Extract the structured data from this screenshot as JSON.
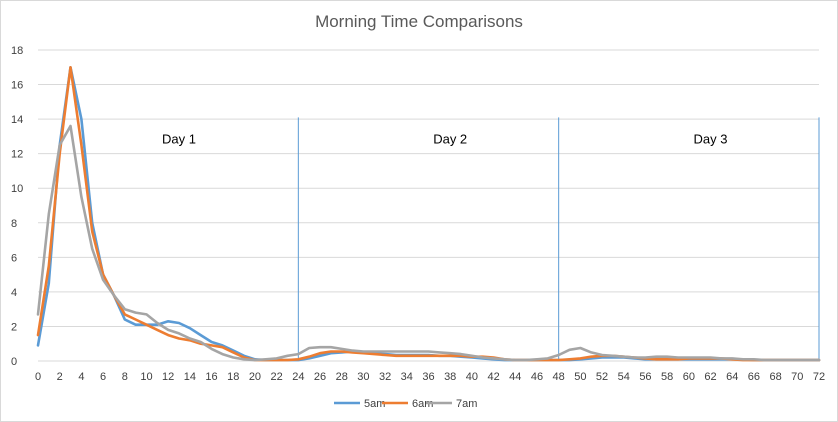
{
  "chart_data": {
    "type": "line",
    "title": "Morning Time Comparisons",
    "xlabel": "",
    "ylabel": "",
    "xlim": [
      0,
      72
    ],
    "ylim": [
      0,
      18
    ],
    "x_ticks": [
      "0",
      "2",
      "4",
      "6",
      "8",
      "10",
      "12",
      "14",
      "16",
      "18",
      "20",
      "22",
      "24",
      "26",
      "28",
      "30",
      "32",
      "34",
      "36",
      "38",
      "40",
      "42",
      "44",
      "46",
      "48",
      "50",
      "52",
      "54",
      "56",
      "58",
      "60",
      "62",
      "64",
      "66",
      "68",
      "70",
      "72"
    ],
    "y_ticks": [
      "0",
      "2",
      "4",
      "6",
      "8",
      "10",
      "12",
      "14",
      "16",
      "18"
    ],
    "grid": "horizontal",
    "legend_position": "bottom",
    "vertical_lines": [
      24,
      48,
      72
    ],
    "day_labels": [
      {
        "text": "Day 1",
        "x": 13
      },
      {
        "text": "Day 2",
        "x": 38
      },
      {
        "text": "Day 3",
        "x": 62
      }
    ],
    "colors": {
      "5am": "#5b9bd5",
      "6am": "#ed7d31",
      "7am": "#a5a5a5",
      "divider": "#5b9bd5",
      "grid": "#d9d9d9"
    },
    "series": [
      {
        "name": "5am",
        "color": "#5b9bd5",
        "x": [
          0,
          1,
          2,
          3,
          4,
          5,
          6,
          7,
          8,
          9,
          10,
          11,
          12,
          13,
          14,
          15,
          16,
          17,
          18,
          19,
          20,
          21,
          22,
          23,
          24,
          25,
          26,
          27,
          28,
          29,
          30,
          31,
          32,
          33,
          34,
          35,
          36,
          37,
          38,
          39,
          40,
          41,
          42,
          43,
          44,
          45,
          46,
          47,
          48,
          49,
          50,
          51,
          52,
          53,
          54,
          55,
          56,
          57,
          58,
          59,
          60,
          61,
          62,
          63,
          64,
          65,
          66,
          67,
          68,
          69,
          70,
          71,
          72
        ],
        "values": [
          0.9,
          4.5,
          12.5,
          17.0,
          14.0,
          8.0,
          5.0,
          3.8,
          2.4,
          2.1,
          2.1,
          2.1,
          2.3,
          2.2,
          1.9,
          1.5,
          1.1,
          0.9,
          0.6,
          0.3,
          0.1,
          0.05,
          0.05,
          0.05,
          0.05,
          0.15,
          0.3,
          0.45,
          0.5,
          0.55,
          0.5,
          0.45,
          0.4,
          0.35,
          0.35,
          0.35,
          0.35,
          0.3,
          0.3,
          0.25,
          0.2,
          0.15,
          0.1,
          0.05,
          0.05,
          0.05,
          0.05,
          0.05,
          0.05,
          0.05,
          0.1,
          0.15,
          0.2,
          0.2,
          0.2,
          0.15,
          0.1,
          0.1,
          0.1,
          0.1,
          0.1,
          0.1,
          0.1,
          0.1,
          0.1,
          0.1,
          0.05,
          0.05,
          0.05,
          0.05,
          0.05,
          0.05,
          0.05
        ]
      },
      {
        "name": "6am",
        "color": "#ed7d31",
        "x": [
          0,
          1,
          2,
          3,
          4,
          5,
          6,
          7,
          8,
          9,
          10,
          11,
          12,
          13,
          14,
          15,
          16,
          17,
          18,
          19,
          20,
          21,
          22,
          23,
          24,
          25,
          26,
          27,
          28,
          29,
          30,
          31,
          32,
          33,
          34,
          35,
          36,
          37,
          38,
          39,
          40,
          41,
          42,
          43,
          44,
          45,
          46,
          47,
          48,
          49,
          50,
          51,
          52,
          53,
          54,
          55,
          56,
          57,
          58,
          59,
          60,
          61,
          62,
          63,
          64,
          65,
          66,
          67,
          68,
          69,
          70,
          71,
          72
        ],
        "values": [
          1.5,
          5.5,
          12.0,
          17.0,
          12.5,
          7.5,
          5.0,
          3.8,
          2.7,
          2.4,
          2.1,
          1.8,
          1.5,
          1.3,
          1.2,
          1.0,
          0.9,
          0.8,
          0.5,
          0.2,
          0.05,
          0.05,
          0.05,
          0.05,
          0.1,
          0.25,
          0.45,
          0.55,
          0.55,
          0.5,
          0.45,
          0.4,
          0.35,
          0.3,
          0.3,
          0.3,
          0.3,
          0.3,
          0.3,
          0.3,
          0.25,
          0.25,
          0.2,
          0.1,
          0.05,
          0.05,
          0.05,
          0.05,
          0.05,
          0.1,
          0.15,
          0.25,
          0.3,
          0.3,
          0.25,
          0.2,
          0.15,
          0.1,
          0.1,
          0.1,
          0.15,
          0.15,
          0.15,
          0.15,
          0.1,
          0.05,
          0.05,
          0.05,
          0.05,
          0.05,
          0.05,
          0.05,
          0.05
        ]
      },
      {
        "name": "7am",
        "color": "#a5a5a5",
        "x": [
          0,
          1,
          2,
          3,
          4,
          5,
          6,
          7,
          8,
          9,
          10,
          11,
          12,
          13,
          14,
          15,
          16,
          17,
          18,
          19,
          20,
          21,
          22,
          23,
          24,
          25,
          26,
          27,
          28,
          29,
          30,
          31,
          32,
          33,
          34,
          35,
          36,
          37,
          38,
          39,
          40,
          41,
          42,
          43,
          44,
          45,
          46,
          47,
          48,
          49,
          50,
          51,
          52,
          53,
          54,
          55,
          56,
          57,
          58,
          59,
          60,
          61,
          62,
          63,
          64,
          65,
          66,
          67,
          68,
          69,
          70,
          71,
          72
        ],
        "values": [
          2.7,
          8.5,
          12.5,
          13.6,
          9.5,
          6.5,
          4.7,
          3.8,
          3.0,
          2.8,
          2.7,
          2.2,
          1.8,
          1.6,
          1.3,
          1.1,
          0.7,
          0.4,
          0.2,
          0.1,
          0.05,
          0.1,
          0.15,
          0.3,
          0.4,
          0.75,
          0.8,
          0.8,
          0.7,
          0.6,
          0.55,
          0.55,
          0.55,
          0.55,
          0.55,
          0.55,
          0.55,
          0.5,
          0.45,
          0.4,
          0.3,
          0.2,
          0.15,
          0.1,
          0.05,
          0.05,
          0.1,
          0.15,
          0.35,
          0.65,
          0.75,
          0.5,
          0.35,
          0.3,
          0.25,
          0.2,
          0.2,
          0.25,
          0.25,
          0.2,
          0.2,
          0.2,
          0.2,
          0.15,
          0.15,
          0.1,
          0.1,
          0.05,
          0.05,
          0.05,
          0.05,
          0.05,
          0.05
        ]
      }
    ]
  }
}
